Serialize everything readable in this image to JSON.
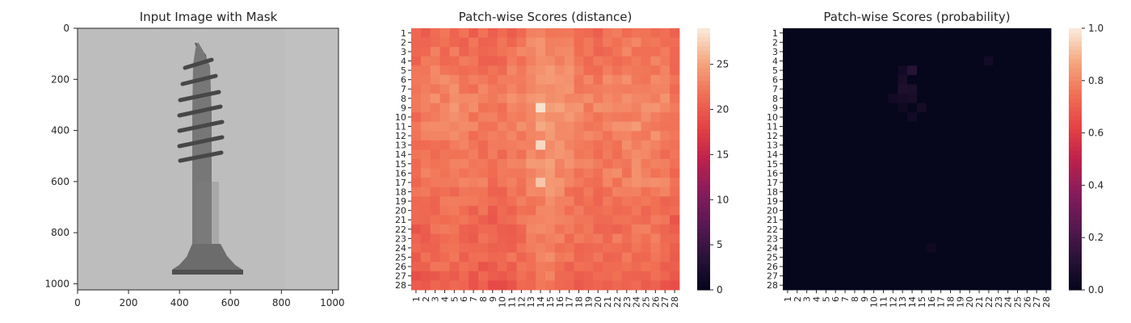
{
  "chart_data": [
    {
      "type": "image",
      "title": "Input Image with Mask",
      "xlim": [
        0,
        1024
      ],
      "ylim": [
        1024,
        0
      ],
      "xticks": [
        0,
        200,
        400,
        600,
        800,
        1000
      ],
      "yticks": [
        0,
        200,
        400,
        600,
        800,
        1000
      ],
      "object": "screw-icon",
      "colors": {
        "background": "#bdbdbd",
        "object": "#6a6a6a"
      }
    },
    {
      "type": "heatmap",
      "title": "Patch-wise Scores (distance)",
      "rows": 28,
      "cols": 28,
      "colormap": "rocket",
      "vmin": 0,
      "vmax": 29,
      "colorbar_ticks": [
        0,
        5,
        10,
        15,
        20,
        25
      ],
      "row_profile": [
        21,
        21.5,
        22,
        22,
        23,
        23.5,
        24,
        24.5,
        24.5,
        24,
        24,
        23.5,
        23,
        22.5,
        23,
        23,
        23,
        22,
        21.5,
        21,
        21,
        21,
        21,
        20.5,
        21,
        20,
        19.5,
        18.5
      ],
      "col_profile": [
        20,
        21,
        22,
        22,
        22,
        21.5,
        21,
        21,
        20.5,
        20.5,
        21.5,
        22.5,
        24,
        25,
        25,
        24,
        23,
        22,
        21.5,
        21.5,
        22,
        22.5,
        22.5,
        23,
        22.5,
        22.5,
        22,
        20
      ],
      "hotspots": [
        {
          "row": 13,
          "col": 14,
          "value": 28
        },
        {
          "row": 9,
          "col": 14,
          "value": 28.5
        },
        {
          "row": 17,
          "col": 14,
          "value": 27
        }
      ]
    },
    {
      "type": "heatmap",
      "title": "Patch-wise Scores (probability)",
      "rows": 28,
      "cols": 28,
      "colormap": "rocket",
      "vmin": 0,
      "vmax": 1,
      "colorbar_ticks": [
        "0.0",
        "0.2",
        "0.4",
        "0.6",
        "0.8",
        "1.0"
      ],
      "base_value": 0.01,
      "hotspots": [
        {
          "row": 5,
          "col": 14,
          "value": 0.12
        },
        {
          "row": 6,
          "col": 13,
          "value": 0.07
        },
        {
          "row": 7,
          "col": 13,
          "value": 0.09
        },
        {
          "row": 7,
          "col": 14,
          "value": 0.08
        },
        {
          "row": 8,
          "col": 12,
          "value": 0.05
        },
        {
          "row": 8,
          "col": 13,
          "value": 0.06
        },
        {
          "row": 8,
          "col": 14,
          "value": 0.07
        },
        {
          "row": 9,
          "col": 15,
          "value": 0.06
        },
        {
          "row": 10,
          "col": 14,
          "value": 0.05
        },
        {
          "row": 4,
          "col": 22,
          "value": 0.05
        },
        {
          "row": 5,
          "col": 13,
          "value": 0.05
        },
        {
          "row": 9,
          "col": 13,
          "value": 0.04
        },
        {
          "row": 24,
          "col": 16,
          "value": 0.04
        }
      ]
    }
  ]
}
